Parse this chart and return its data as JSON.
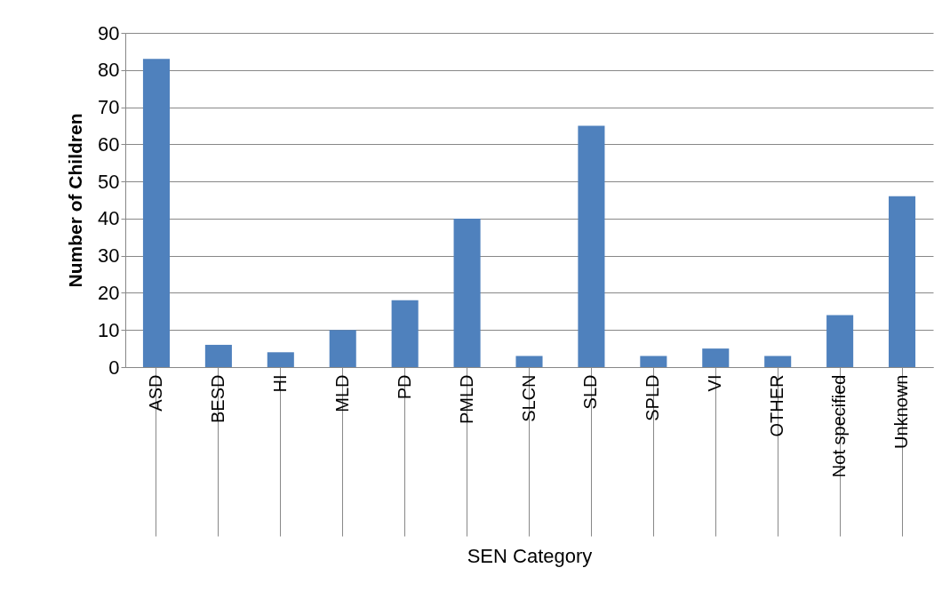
{
  "chart_data": {
    "type": "bar",
    "xlabel": "SEN Category",
    "ylabel": "Number of Children",
    "categories": [
      "ASD",
      "BESD",
      "HI",
      "MLD",
      "PD",
      "PMLD",
      "SLCN",
      "SLD",
      "SPLD",
      "VI",
      "OTHER",
      "Not specified",
      "Unknown"
    ],
    "values": [
      83,
      6,
      4,
      10,
      18,
      40,
      3,
      65,
      3,
      5,
      3,
      14,
      46
    ],
    "color": "#4f81bd",
    "ylim": [
      0,
      90
    ],
    "yticks": [
      0,
      10,
      20,
      30,
      40,
      50,
      60,
      70,
      80,
      90
    ],
    "grid": "y"
  }
}
